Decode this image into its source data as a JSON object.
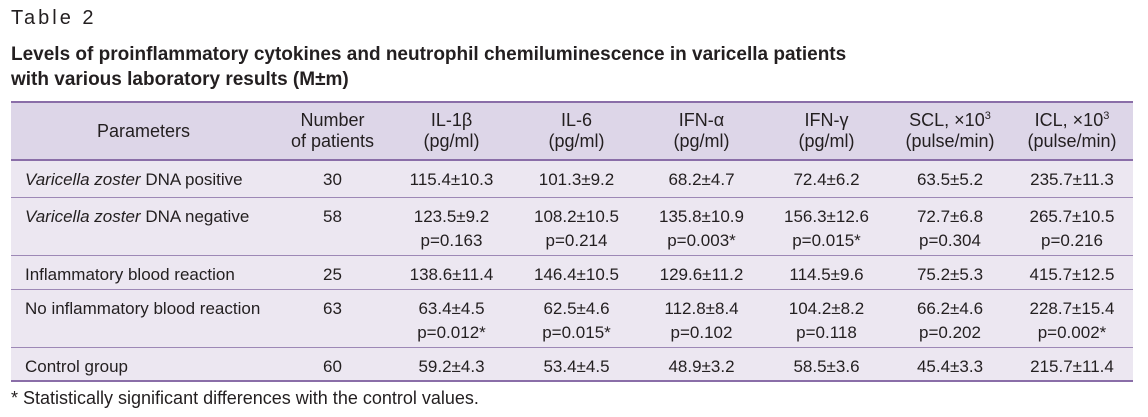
{
  "table_label": "Table 2",
  "caption": {
    "line1": "Levels of proinflammatory cytokines and neutrophil chemiluminescence in varicella patients",
    "line2": "with various laboratory results (M±m)"
  },
  "headers": {
    "parameters": "Parameters",
    "patients_1": "Number",
    "patients_2": "of patients",
    "il1b_1": "IL-1β",
    "il1b_2": "(pg/ml)",
    "il6_1": "IL-6",
    "il6_2": "(pg/ml)",
    "ifna_1": "IFN-α",
    "ifna_2": "(pg/ml)",
    "ifng_1": "IFN-γ",
    "ifng_2": "(pg/ml)",
    "scl_1": "SCL, ×10",
    "scl_sup": "3",
    "scl_2": "(pulse/min)",
    "icl_1": "ICL, ×10",
    "icl_sup": "3",
    "icl_2": "(pulse/min)"
  },
  "rows": [
    {
      "param_italic": "Varicella zoster",
      "param_rest": " DNA positive",
      "n": "30",
      "il1b": "115.4±10.3",
      "il6": "101.3±9.2",
      "ifna": "68.2±4.7",
      "ifng": "72.4±6.2",
      "scl": "63.5±5.2",
      "icl": "235.7±11.3"
    },
    {
      "param_italic": "Varicella zoster",
      "param_rest": " DNA negative",
      "n": "58",
      "il1b": "123.5±9.2",
      "il1b_p": "p=0.163",
      "il6": "108.2±10.5",
      "il6_p": "p=0.214",
      "ifna": "135.8±10.9",
      "ifna_p": "p=0.003*",
      "ifng": "156.3±12.6",
      "ifng_p": "p=0.015*",
      "scl": "72.7±6.8",
      "scl_p": "p=0.304",
      "icl": "265.7±10.5",
      "icl_p": "p=0.216"
    },
    {
      "param": "Inflammatory blood reaction",
      "n": "25",
      "il1b": "138.6±11.4",
      "il6": "146.4±10.5",
      "ifna": "129.6±11.2",
      "ifng": "114.5±9.6",
      "scl": "75.2±5.3",
      "icl": "415.7±12.5"
    },
    {
      "param": "No inflammatory blood reaction",
      "n": "63",
      "il1b": "63.4±4.5",
      "il1b_p": "p=0.012*",
      "il6": "62.5±4.6",
      "il6_p": "p=0.015*",
      "ifna": "112.8±8.4",
      "ifna_p": "p=0.102",
      "ifng": "104.2±8.2",
      "ifng_p": "p=0.118",
      "scl": "66.2±4.6",
      "scl_p": "p=0.202",
      "icl": "228.7±15.4",
      "icl_p": "p=0.002*"
    },
    {
      "param": "Control group",
      "n": "60",
      "il1b": "59.2±4.3",
      "il6": "53.4±4.5",
      "ifna": "48.9±3.2",
      "ifng": "58.5±3.6",
      "scl": "45.4±3.3",
      "icl": "215.7±11.4"
    }
  ],
  "footnote": "* Statistically significant differences with the control values."
}
